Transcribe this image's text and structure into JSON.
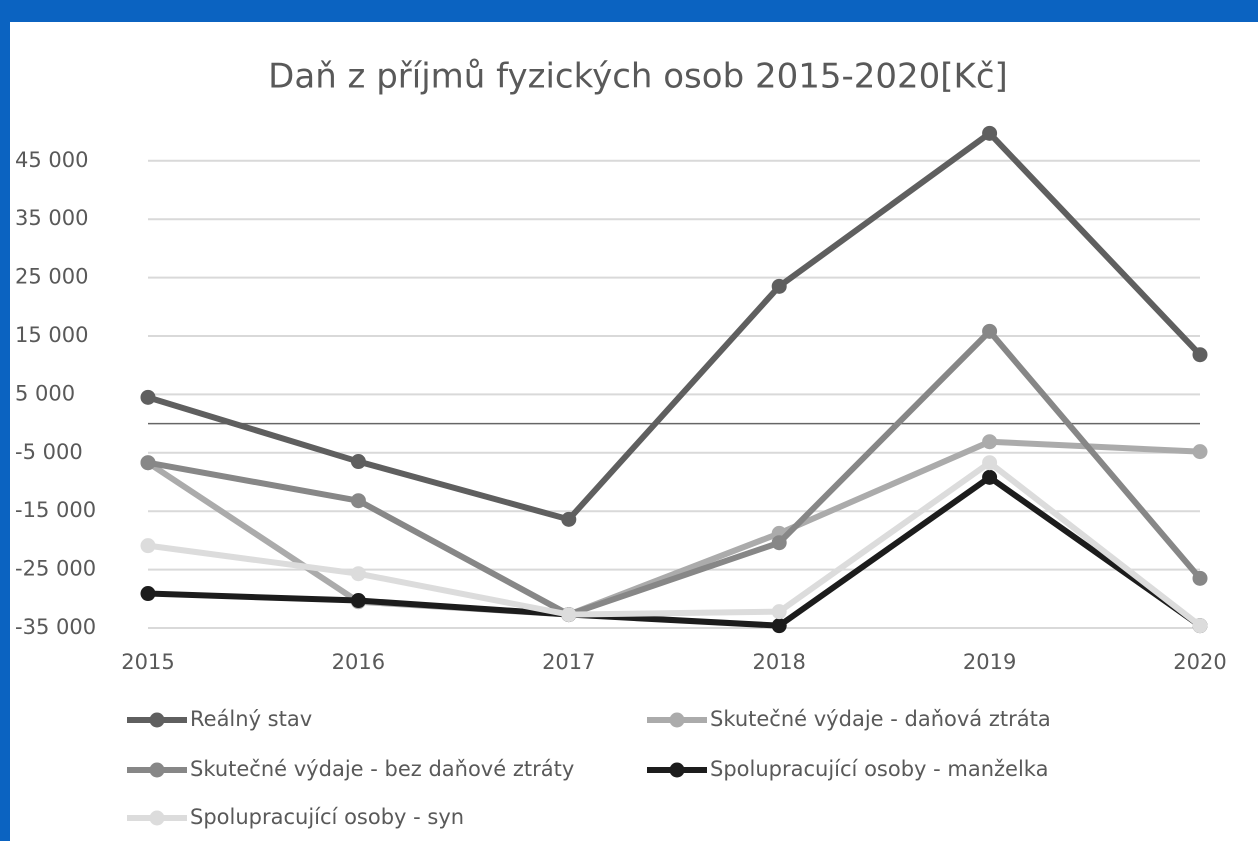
{
  "chart_data": {
    "type": "line",
    "title": "Daň z příjmů fyzických osob 2015-2020[Kč]",
    "categories": [
      "2015",
      "2016",
      "2017",
      "2018",
      "2019",
      "2020"
    ],
    "series": [
      {
        "name": "Reálný stav",
        "color": "#5f5f5f",
        "values": [
          4500,
          -6500,
          -16400,
          23500,
          49700,
          11800
        ]
      },
      {
        "name": "Skutečné výdaje - daňová ztráta",
        "color": "#ababab",
        "values": [
          -6700,
          -30500,
          -32700,
          -18800,
          -3100,
          -4800
        ]
      },
      {
        "name": "Skutečné výdaje - bez daňové ztráty",
        "color": "#878787",
        "values": [
          -6700,
          -13200,
          -32700,
          -20400,
          15800,
          -26500
        ]
      },
      {
        "name": "Spolupracující osoby - manželka",
        "color": "#1c1c1c",
        "values": [
          -29100,
          -30300,
          -32700,
          -34600,
          -9200,
          -34600
        ]
      },
      {
        "name": "Spolupracující osoby - syn",
        "color": "#dcdcdc",
        "values": [
          -20900,
          -25700,
          -32700,
          -32200,
          -6700,
          -34600
        ]
      }
    ],
    "ylim": [
      -35000,
      50000
    ],
    "yticks": [
      {
        "value": -35000,
        "label": "-35 000"
      },
      {
        "value": -25000,
        "label": "-25 000"
      },
      {
        "value": -15000,
        "label": "-15 000"
      },
      {
        "value": -5000,
        "label": "-5 000"
      },
      {
        "value": 5000,
        "label": "5 000"
      },
      {
        "value": 15000,
        "label": "15 000"
      },
      {
        "value": 25000,
        "label": "25 000"
      },
      {
        "value": 35000,
        "label": "35 000"
      },
      {
        "value": 45000,
        "label": "45 000"
      }
    ],
    "grid": true,
    "legend": "bottom"
  }
}
